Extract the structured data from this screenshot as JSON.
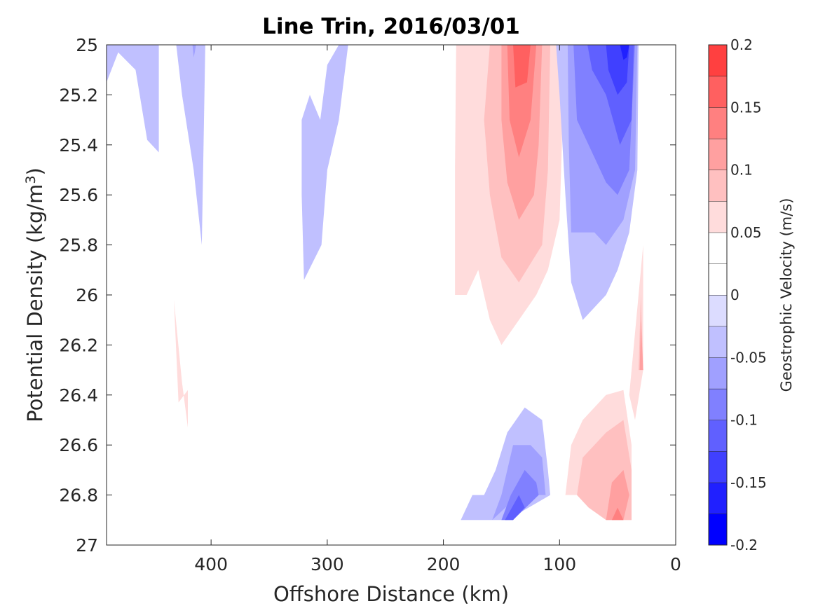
{
  "chart_data": {
    "type": "contourf",
    "title": "Line Trin, 2016/03/01",
    "xlabel": "Offshore Distance (km)",
    "ylabel_main": "Potential Density (kg/m",
    "ylabel_sup": "3",
    "ylabel_tail": ")",
    "xlim": [
      490,
      0
    ],
    "x_reversed": true,
    "ylim": [
      25,
      27
    ],
    "y_reversed": true,
    "xticks": [
      400,
      300,
      200,
      100,
      0
    ],
    "yticks": [
      25,
      25.2,
      25.4,
      25.6,
      25.8,
      26,
      26.2,
      26.4,
      26.6,
      26.8,
      27
    ],
    "xtick_labels": [
      "400",
      "300",
      "200",
      "100",
      "0"
    ],
    "ytick_labels": [
      "25",
      "25.2",
      "25.4",
      "25.6",
      "25.8",
      "26",
      "26.2",
      "26.4",
      "26.6",
      "26.8",
      "27"
    ],
    "grid": false,
    "colorbar": {
      "label": "Geostrophic Velocity (m/s)",
      "range": [
        -0.2,
        0.2
      ],
      "levels": [
        -0.2,
        -0.175,
        -0.15,
        -0.125,
        -0.1,
        -0.075,
        -0.05,
        -0.025,
        0,
        0.025,
        0.05,
        0.075,
        0.1,
        0.125,
        0.15,
        0.175,
        0.2
      ],
      "colors": [
        "#0000ff",
        "#2020ff",
        "#4040ff",
        "#6060ff",
        "#8080ff",
        "#a0a0ff",
        "#c0c0ff",
        "#dcdcff",
        "#ffffff",
        "#ffffff",
        "#ffdcdc",
        "#ffc0c0",
        "#ffa0a0",
        "#ff8080",
        "#ff6060",
        "#ff4040",
        "#ff2020",
        "#ff0000"
      ],
      "ticks": [
        -0.2,
        -0.15,
        -0.1,
        -0.05,
        0,
        0.05,
        0.1,
        0.15,
        0.2
      ],
      "tick_labels": [
        "-0.2",
        "-0.15",
        "-0.1",
        "-0.05",
        "0",
        "0.05",
        "0.1",
        "0.15",
        "0.2"
      ]
    },
    "regions": [
      {
        "name": "neg-nw-1",
        "level": -0.05,
        "points": [
          [
            490,
            25.0
          ],
          [
            445,
            25.0
          ],
          [
            445,
            25.43
          ],
          [
            455,
            25.38
          ],
          [
            465,
            25.1
          ],
          [
            480,
            25.03
          ],
          [
            490,
            25.15
          ]
        ]
      },
      {
        "name": "neg-nw-2",
        "level": -0.05,
        "points": [
          [
            430,
            25.0
          ],
          [
            405,
            25.0
          ],
          [
            408,
            25.8
          ],
          [
            415,
            25.5
          ],
          [
            425,
            25.2
          ]
        ]
      },
      {
        "name": "neg-nw-2b",
        "level": -0.075,
        "points": [
          [
            416,
            25.0
          ],
          [
            413,
            25.0
          ],
          [
            414,
            25.03
          ],
          [
            415,
            25.05
          ]
        ]
      },
      {
        "name": "neg-mid",
        "level": -0.05,
        "points": [
          [
            290,
            25.0
          ],
          [
            282,
            25.0
          ],
          [
            290,
            25.3
          ],
          [
            300,
            25.5
          ],
          [
            305,
            25.8
          ],
          [
            320,
            25.94
          ],
          [
            322,
            25.6
          ],
          [
            322,
            25.3
          ],
          [
            315,
            25.2
          ],
          [
            306,
            25.3
          ],
          [
            300,
            25.08
          ]
        ]
      },
      {
        "name": "pos-dense",
        "level": 0.05,
        "points": [
          [
            432,
            26.02
          ],
          [
            425,
            26.35
          ],
          [
            420,
            26.53
          ],
          [
            420,
            26.38
          ],
          [
            428,
            26.43
          ]
        ]
      },
      {
        "name": "pos-main-1",
        "level": 0.05,
        "points": [
          [
            189,
            25.0
          ],
          [
            98,
            25.0
          ],
          [
            98,
            25.4
          ],
          [
            100,
            25.7
          ],
          [
            110,
            25.9
          ],
          [
            120,
            26.0
          ],
          [
            135,
            26.1
          ],
          [
            150,
            26.2
          ],
          [
            160,
            26.1
          ],
          [
            170,
            25.9
          ],
          [
            180,
            26.0
          ],
          [
            190,
            26.0
          ],
          [
            190,
            25.5
          ]
        ]
      },
      {
        "name": "pos-main-2",
        "level": 0.075,
        "points": [
          [
            160,
            25.0
          ],
          [
            108,
            25.0
          ],
          [
            110,
            25.5
          ],
          [
            115,
            25.8
          ],
          [
            135,
            25.95
          ],
          [
            150,
            25.85
          ],
          [
            160,
            25.6
          ],
          [
            165,
            25.3
          ]
        ]
      },
      {
        "name": "pos-main-3",
        "level": 0.1,
        "points": [
          [
            150,
            25.0
          ],
          [
            115,
            25.0
          ],
          [
            118,
            25.4
          ],
          [
            122,
            25.6
          ],
          [
            135,
            25.7
          ],
          [
            145,
            25.55
          ],
          [
            150,
            25.3
          ]
        ]
      },
      {
        "name": "pos-main-4",
        "level": 0.125,
        "points": [
          [
            145,
            25.0
          ],
          [
            120,
            25.0
          ],
          [
            125,
            25.3
          ],
          [
            135,
            25.45
          ],
          [
            143,
            25.3
          ]
        ]
      },
      {
        "name": "pos-main-5",
        "level": 0.15,
        "points": [
          [
            140,
            25.0
          ],
          [
            125,
            25.0
          ],
          [
            128,
            25.15
          ],
          [
            138,
            25.17
          ]
        ]
      },
      {
        "name": "neg-main-1",
        "level": -0.05,
        "points": [
          [
            103,
            25.0
          ],
          [
            32,
            25.0
          ],
          [
            33,
            25.5
          ],
          [
            40,
            25.75
          ],
          [
            50,
            25.9
          ],
          [
            60,
            26.0
          ],
          [
            70,
            26.05
          ],
          [
            80,
            26.1
          ],
          [
            90,
            25.95
          ],
          [
            95,
            25.6
          ],
          [
            100,
            25.2
          ]
        ]
      },
      {
        "name": "neg-main-2",
        "level": -0.075,
        "points": [
          [
            93,
            25.0
          ],
          [
            33,
            25.0
          ],
          [
            35,
            25.5
          ],
          [
            45,
            25.7
          ],
          [
            60,
            25.8
          ],
          [
            70,
            25.75
          ],
          [
            90,
            25.75
          ],
          [
            92,
            25.4
          ]
        ]
      },
      {
        "name": "neg-main-3",
        "level": -0.1,
        "points": [
          [
            88,
            25.0
          ],
          [
            35,
            25.0
          ],
          [
            40,
            25.5
          ],
          [
            50,
            25.6
          ],
          [
            60,
            25.55
          ],
          [
            70,
            25.45
          ],
          [
            85,
            25.3
          ]
        ]
      },
      {
        "name": "neg-main-4",
        "level": -0.125,
        "points": [
          [
            76,
            25.0
          ],
          [
            36,
            25.0
          ],
          [
            38,
            25.3
          ],
          [
            48,
            25.4
          ],
          [
            60,
            25.2
          ],
          [
            72,
            25.1
          ]
        ]
      },
      {
        "name": "neg-main-5",
        "level": -0.15,
        "points": [
          [
            60,
            25.0
          ],
          [
            40,
            25.0
          ],
          [
            42,
            25.15
          ],
          [
            50,
            25.2
          ],
          [
            58,
            25.1
          ]
        ]
      },
      {
        "name": "neg-main-6",
        "level": -0.175,
        "points": [
          [
            48,
            25.0
          ],
          [
            40,
            25.0
          ],
          [
            42,
            25.05
          ],
          [
            45,
            25.06
          ]
        ]
      },
      {
        "name": "pos-coast-1",
        "level": 0.05,
        "points": [
          [
            40,
            26.4
          ],
          [
            32,
            26.0
          ],
          [
            28,
            25.8
          ],
          [
            28,
            26.3
          ],
          [
            35,
            26.5
          ]
        ]
      },
      {
        "name": "pos-coast-2",
        "level": 0.075,
        "points": [
          [
            32,
            26.3
          ],
          [
            30,
            26.0
          ],
          [
            28,
            26.3
          ]
        ]
      },
      {
        "name": "pos-coast-3",
        "level": 0.1,
        "points": [
          [
            31,
            26.3
          ],
          [
            30,
            26.1
          ],
          [
            28,
            26.3
          ]
        ]
      },
      {
        "name": "neg-lower-1",
        "level": -0.05,
        "points": [
          [
            185,
            26.9
          ],
          [
            175,
            26.8
          ],
          [
            165,
            26.8
          ],
          [
            155,
            26.7
          ],
          [
            145,
            26.55
          ],
          [
            130,
            26.45
          ],
          [
            115,
            26.5
          ],
          [
            110,
            26.7
          ],
          [
            108,
            26.8
          ],
          [
            145,
            26.9
          ]
        ]
      },
      {
        "name": "neg-lower-2",
        "level": -0.075,
        "points": [
          [
            158,
            26.9
          ],
          [
            150,
            26.8
          ],
          [
            140,
            26.6
          ],
          [
            125,
            26.6
          ],
          [
            115,
            26.65
          ],
          [
            112,
            26.8
          ],
          [
            135,
            26.8
          ]
        ]
      },
      {
        "name": "neg-lower-3",
        "level": -0.1,
        "points": [
          [
            150,
            26.9
          ],
          [
            142,
            26.8
          ],
          [
            130,
            26.7
          ],
          [
            120,
            26.75
          ],
          [
            118,
            26.8
          ],
          [
            140,
            26.9
          ]
        ]
      },
      {
        "name": "neg-lower-4",
        "level": -0.125,
        "points": [
          [
            147,
            26.9
          ],
          [
            135,
            26.8
          ],
          [
            130,
            26.85
          ],
          [
            140,
            26.9
          ]
        ]
      },
      {
        "name": "pos-lower-1",
        "level": 0.05,
        "points": [
          [
            95,
            26.8
          ],
          [
            90,
            26.6
          ],
          [
            80,
            26.5
          ],
          [
            70,
            26.45
          ],
          [
            60,
            26.4
          ],
          [
            45,
            26.38
          ],
          [
            38,
            26.6
          ],
          [
            38,
            26.9
          ],
          [
            55,
            26.9
          ],
          [
            75,
            26.8
          ]
        ]
      },
      {
        "name": "pos-lower-2",
        "level": 0.075,
        "points": [
          [
            85,
            26.8
          ],
          [
            80,
            26.65
          ],
          [
            70,
            26.6
          ],
          [
            60,
            26.55
          ],
          [
            45,
            26.5
          ],
          [
            38,
            26.7
          ],
          [
            38,
            26.9
          ],
          [
            60,
            26.9
          ],
          [
            75,
            26.85
          ]
        ]
      },
      {
        "name": "pos-lower-3",
        "level": 0.1,
        "points": [
          [
            60,
            26.9
          ],
          [
            55,
            26.75
          ],
          [
            45,
            26.7
          ],
          [
            40,
            26.8
          ],
          [
            45,
            26.9
          ]
        ]
      },
      {
        "name": "pos-lower-4",
        "level": 0.125,
        "points": [
          [
            55,
            26.9
          ],
          [
            50,
            26.85
          ],
          [
            45,
            26.9
          ]
        ]
      }
    ]
  }
}
